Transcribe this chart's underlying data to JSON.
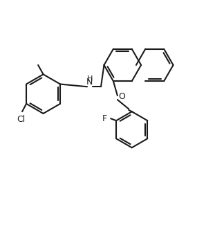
{
  "bg_color": "#ffffff",
  "line_color": "#1a1a1a",
  "line_width": 1.5,
  "figsize": [
    2.98,
    3.25
  ],
  "dpi": 100,
  "label_NH": "H",
  "label_O": "O",
  "label_Cl": "Cl",
  "label_F": "F",
  "font_size": 9
}
